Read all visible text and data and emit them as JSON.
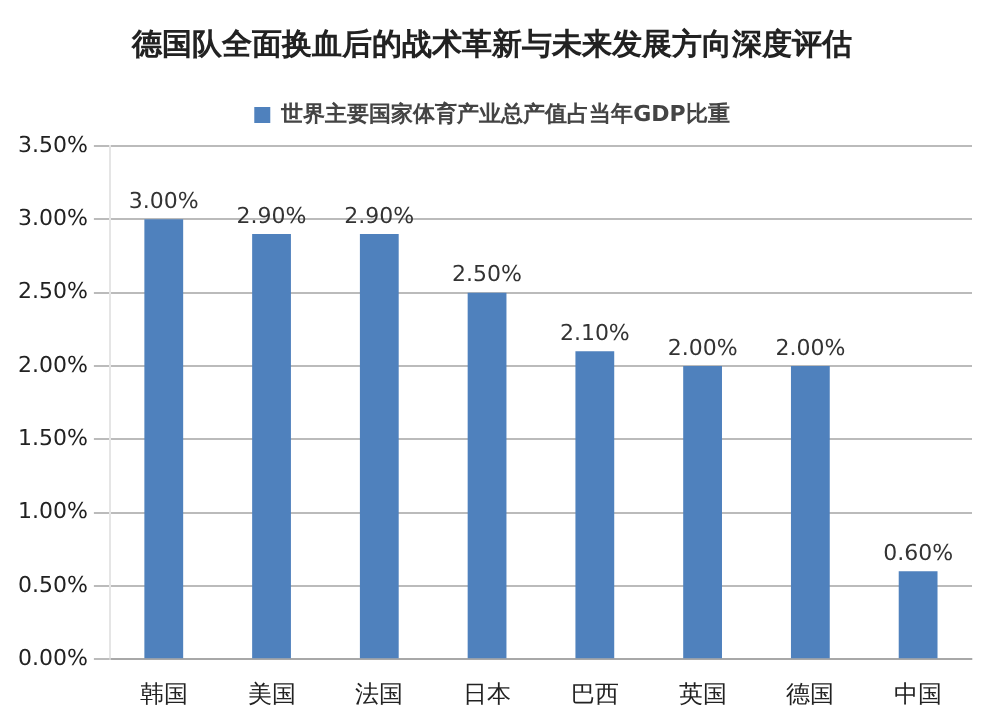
{
  "chart_data": {
    "type": "bar",
    "title": "德国队全面换血后的战术革新与未来发展方向深度评估",
    "categories": [
      "韩国",
      "美国",
      "法国",
      "日本",
      "巴西",
      "英国",
      "德国",
      "中国"
    ],
    "series": [
      {
        "name": "世界主要国家体育产业总产值占当年GDP比重",
        "color": "#4f81bd",
        "values": [
          3.0,
          2.9,
          2.9,
          2.5,
          2.1,
          2.0,
          2.0,
          0.6
        ],
        "value_labels": [
          "3.00%",
          "2.90%",
          "2.90%",
          "2.50%",
          "2.10%",
          "2.00%",
          "2.00%",
          "0.60%"
        ]
      }
    ],
    "ylim": [
      0,
      3.5
    ],
    "yticks": [
      {
        "value": 0,
        "label": "0.00%"
      },
      {
        "value": 0.5,
        "label": "0.50%"
      },
      {
        "value": 1,
        "label": "1.00%"
      },
      {
        "value": 1.5,
        "label": "1.50%"
      },
      {
        "value": 2,
        "label": "2.00%"
      },
      {
        "value": 2.5,
        "label": "2.50%"
      },
      {
        "value": 3,
        "label": "3.00%"
      },
      {
        "value": 3.5,
        "label": "3.50%"
      }
    ],
    "grid": "y",
    "legend": "top"
  }
}
